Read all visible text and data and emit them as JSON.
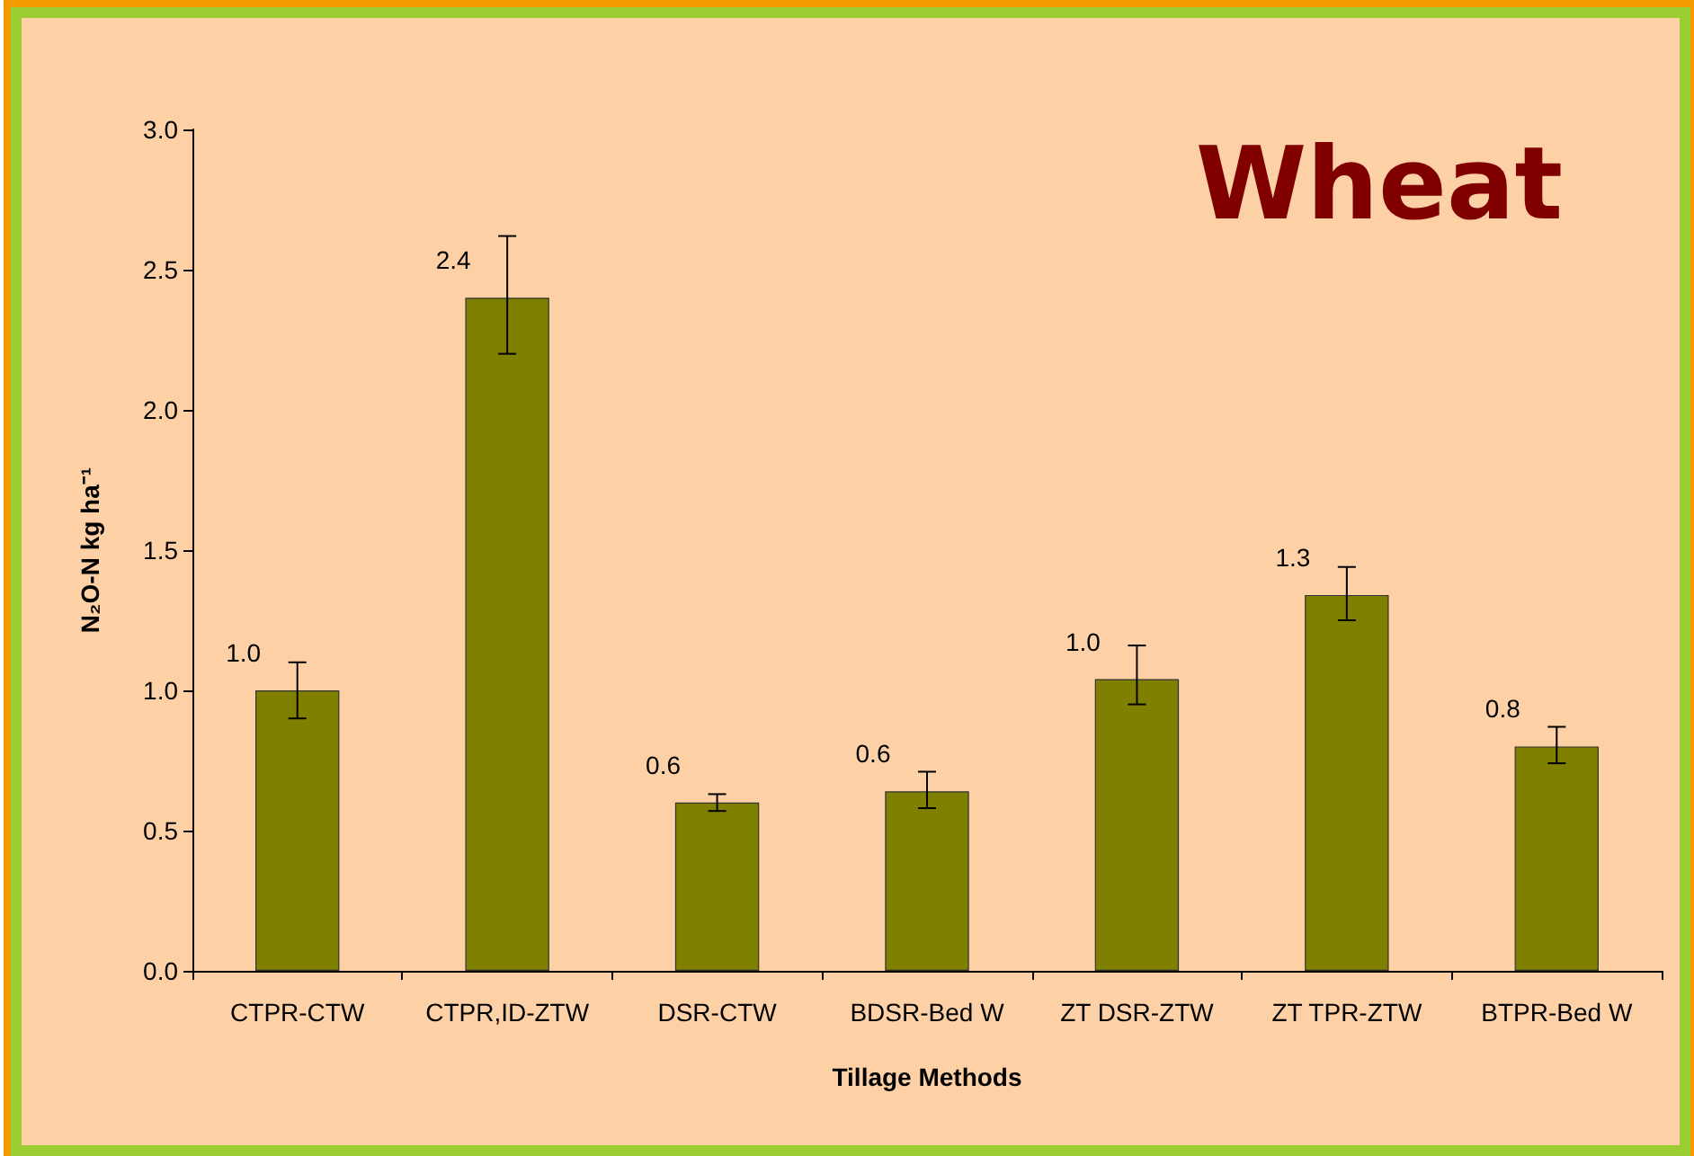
{
  "chart_data": {
    "type": "bar",
    "title": "Wheat",
    "xlabel": "Tillage Methods",
    "ylabel": "N₂O-N kg ha⁻¹",
    "categories": [
      "CTPR-CTW",
      "CTPR,ID-ZTW",
      "DSR-CTW",
      "BDSR-Bed W",
      "ZT DSR-ZTW",
      "ZT TPR-ZTW",
      "BTPR-Bed W"
    ],
    "values": [
      1.0,
      2.4,
      0.6,
      0.64,
      1.04,
      1.34,
      0.8
    ],
    "errors": [
      0.1,
      [
        2.2,
        2.62
      ],
      0.03,
      [
        0.58,
        0.71
      ],
      [
        0.95,
        1.16
      ],
      [
        1.25,
        1.44
      ],
      [
        0.74,
        0.87
      ]
    ],
    "value_labels": [
      "1.0",
      "2.4",
      "0.6",
      "0.6",
      "1.0",
      "1.3",
      "0.8"
    ],
    "color": "#808000",
    "ylim": [
      0,
      3
    ],
    "yticks": [
      {
        "value": 0,
        "label": "0.0"
      },
      {
        "value": 0.5,
        "label": "0.5"
      },
      {
        "value": 1,
        "label": "1.0"
      },
      {
        "value": 1.5,
        "label": "1.5"
      },
      {
        "value": 2,
        "label": "2.0"
      },
      {
        "value": 2.5,
        "label": "2.5"
      },
      {
        "value": 3,
        "label": "3.0"
      }
    ],
    "grid": false
  }
}
